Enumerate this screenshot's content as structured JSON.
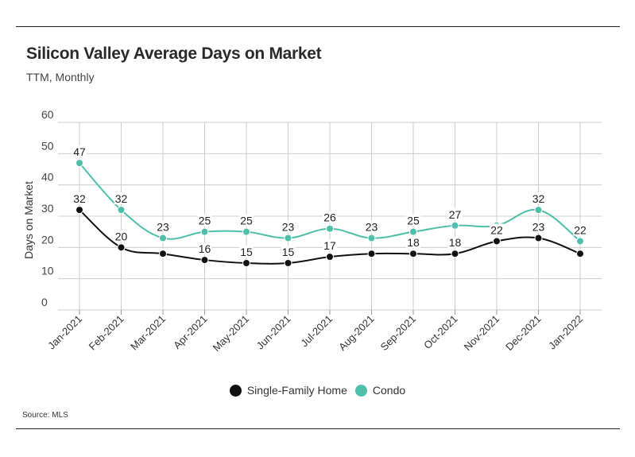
{
  "title": "Silicon Valley Average Days on Market",
  "subtitle": "TTM, Monthly",
  "source": "Source:  MLS",
  "colors": {
    "single_family": "#111111",
    "condo": "#4dbfaa",
    "grid": "#cccccc"
  },
  "chart_data": {
    "type": "line",
    "x": [
      "Jan-2021",
      "Feb-2021",
      "Mar-2021",
      "Apr-2021",
      "May-2021",
      "Jun-2021",
      "Jul-2021",
      "Aug-2021",
      "Sep-2021",
      "Oct-2021",
      "Nov-2021",
      "Dec-2021",
      "Jan-2022"
    ],
    "series": [
      {
        "name": "Single-Family Home",
        "values": [
          32,
          20,
          18,
          16,
          15,
          15,
          17,
          18,
          18,
          18,
          22,
          23,
          18
        ],
        "labels": [
          "32",
          "20",
          "",
          "16",
          "15",
          "15",
          "17",
          "",
          "18",
          "18",
          "22",
          "23",
          ""
        ]
      },
      {
        "name": "Condo",
        "values": [
          47,
          32,
          23,
          25,
          25,
          23,
          26,
          23,
          25,
          27,
          27,
          32,
          22
        ],
        "labels": [
          "47",
          "32",
          "23",
          "25",
          "25",
          "23",
          "26",
          "23",
          "25",
          "27",
          "",
          "32",
          "22"
        ]
      }
    ],
    "ylabel": "Days on Market",
    "xlabel": "",
    "ylim": [
      0,
      60
    ],
    "yticks": [
      "0",
      "10",
      "20",
      "30",
      "40",
      "50",
      "60"
    ],
    "grid": true,
    "legend": "bottom-center",
    "smooth": true
  }
}
